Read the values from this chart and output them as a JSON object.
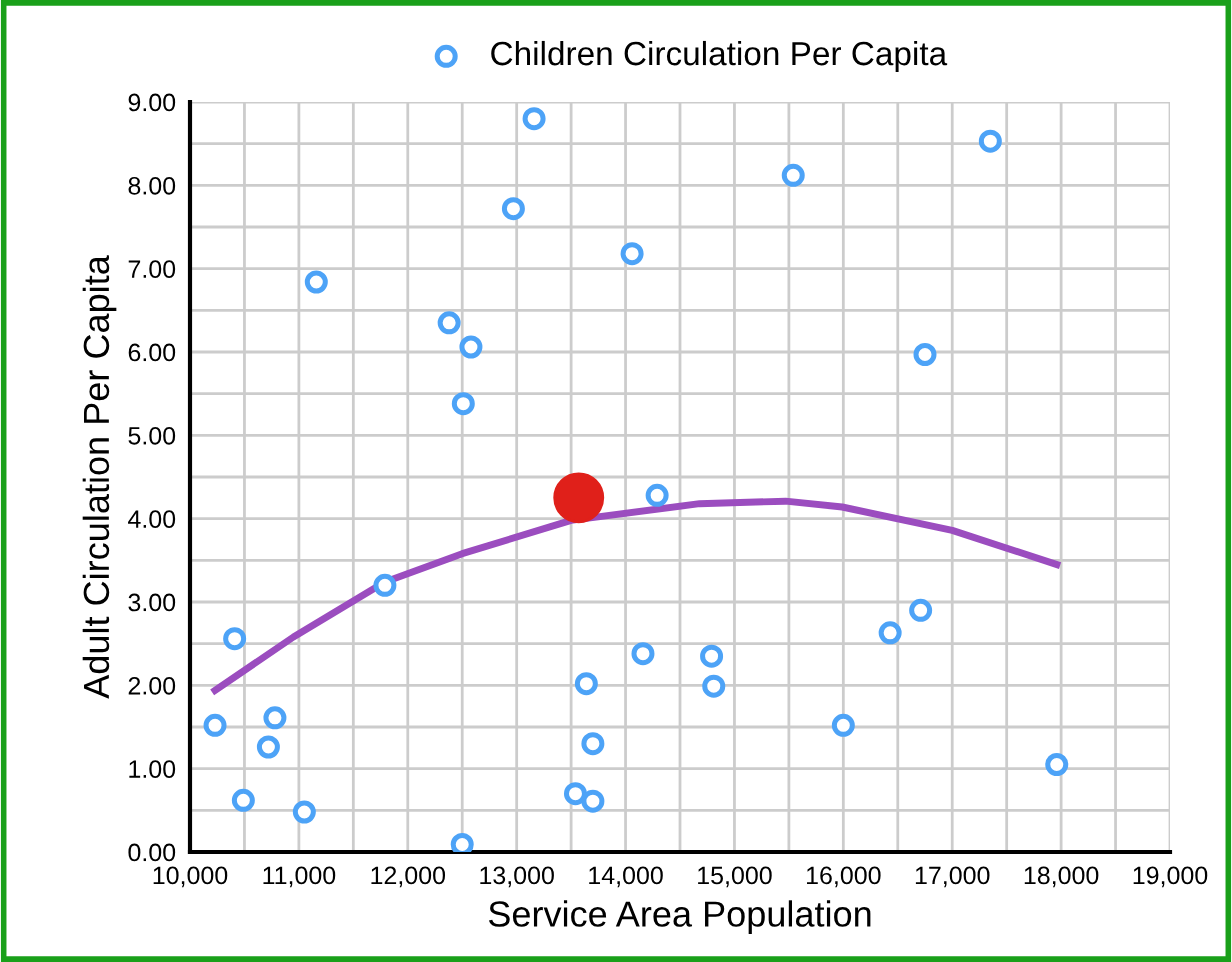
{
  "chart_data": {
    "type": "scatter",
    "xlabel": "Service Area Population",
    "ylabel": "Adult Circulation Per Capita",
    "series": [
      {
        "name": "Children Circulation Per Capita",
        "color": "#4da3f7",
        "marker": "circle",
        "x": [
          13160,
          12970,
          14060,
          11160,
          12380,
          12580,
          12510,
          15540,
          17350,
          16750,
          14290,
          11790,
          10410,
          10230,
          10780,
          10720,
          10490,
          11050,
          12500,
          13640,
          14160,
          13700,
          13540,
          13700,
          14790,
          14810,
          16000,
          16430,
          16710,
          17960
        ],
        "values": [
          8.8,
          7.72,
          7.18,
          6.84,
          6.35,
          6.06,
          5.38,
          8.12,
          8.53,
          5.97,
          4.28,
          3.2,
          2.56,
          1.52,
          1.61,
          1.26,
          0.62,
          0.48,
          0.09,
          2.02,
          2.38,
          1.3,
          0.7,
          0.61,
          2.35,
          1.99,
          1.52,
          2.63,
          2.9,
          1.05
        ]
      },
      {
        "color": "#e0201a",
        "marker": "circle",
        "x": [
          13570
        ],
        "values": [
          4.25
        ]
      },
      {
        "type": "line",
        "color": "#9b4dbf",
        "x": [
          10230,
          10950,
          11790,
          12500,
          13500,
          14680,
          15470,
          15990,
          17000,
          17960
        ],
        "values": [
          1.94,
          2.58,
          3.24,
          3.58,
          3.98,
          4.18,
          4.21,
          4.14,
          3.86,
          3.45
        ]
      }
    ],
    "xlim": [
      10000,
      19000
    ],
    "xticks": [
      {
        "value": 10000,
        "label": "10,000"
      },
      {
        "value": 10500,
        "label": null
      },
      {
        "value": 11000,
        "label": "11,000"
      },
      {
        "value": 11500,
        "label": null
      },
      {
        "value": 12000,
        "label": "12,000"
      },
      {
        "value": 12500,
        "label": null
      },
      {
        "value": 13000,
        "label": "13,000"
      },
      {
        "value": 13500,
        "label": null
      },
      {
        "value": 14000,
        "label": "14,000"
      },
      {
        "value": 14500,
        "label": null
      },
      {
        "value": 15000,
        "label": "15,000"
      },
      {
        "value": 15500,
        "label": null
      },
      {
        "value": 16000,
        "label": "16,000"
      },
      {
        "value": 16500,
        "label": null
      },
      {
        "value": 17000,
        "label": "17,000"
      },
      {
        "value": 17500,
        "label": null
      },
      {
        "value": 18000,
        "label": "18,000"
      },
      {
        "value": 18500,
        "label": null
      },
      {
        "value": 19000,
        "label": "19,000"
      }
    ],
    "ylim": [
      0,
      9
    ],
    "yticks": [
      {
        "value": 0,
        "label": "0.00"
      },
      {
        "value": 0.5,
        "label": null
      },
      {
        "value": 1,
        "label": "1.00"
      },
      {
        "value": 1.5,
        "label": null
      },
      {
        "value": 2,
        "label": "2.00"
      },
      {
        "value": 2.5,
        "label": null
      },
      {
        "value": 3,
        "label": "3.00"
      },
      {
        "value": 3.5,
        "label": null
      },
      {
        "value": 4,
        "label": "4.00"
      },
      {
        "value": 4.5,
        "label": null
      },
      {
        "value": 5,
        "label": "5.00"
      },
      {
        "value": 5.5,
        "label": null
      },
      {
        "value": 6,
        "label": "6.00"
      },
      {
        "value": 6.5,
        "label": null
      },
      {
        "value": 7,
        "label": "7.00"
      },
      {
        "value": 7.5,
        "label": null
      },
      {
        "value": 8,
        "label": "8.00"
      },
      {
        "value": 8.5,
        "label": null
      },
      {
        "value": 9,
        "label": "9.00"
      }
    ],
    "grid": true,
    "legend": "top"
  }
}
